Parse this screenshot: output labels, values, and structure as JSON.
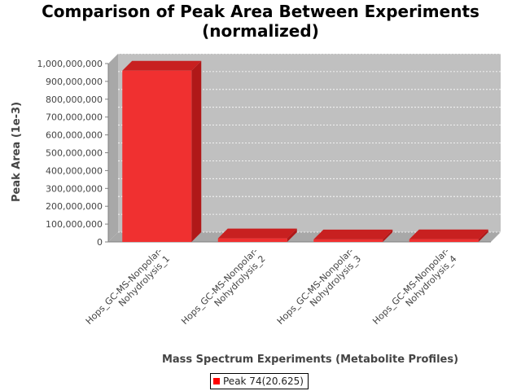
{
  "chart_data": {
    "type": "bar",
    "title_line1": "Comparison of Peak Area Between Experiments",
    "title_line2": "(normalized)",
    "xlabel": "Mass Spectrum Experiments (Metabolite Profiles)",
    "ylabel": "Peak Area (1e-3)",
    "categories": [
      [
        "Hops_GC-MS-Nonpolar-",
        "Nohydrolysis_1"
      ],
      [
        "Hops_GC-MS-Nonpolar-",
        "Nohydrolysis_2"
      ],
      [
        "Hops_GC-MS-Nonpolar-",
        "Nohydrolysis_3"
      ],
      [
        "Hops_GC-MS-Nonpolar-",
        "Nohydrolysis_4"
      ]
    ],
    "series": [
      {
        "name": "Peak 74(20.625)",
        "color": "#ff0000",
        "values": [
          960000000,
          20000000,
          14000000,
          15000000
        ]
      }
    ],
    "ylim": [
      0,
      1000000000
    ],
    "yticks": [
      0,
      100000000,
      200000000,
      300000000,
      400000000,
      500000000,
      600000000,
      700000000,
      800000000,
      900000000,
      1000000000
    ],
    "ytick_labels": [
      "0",
      "100,000,000",
      "200,000,000",
      "300,000,000",
      "400,000,000",
      "500,000,000",
      "600,000,000",
      "700,000,000",
      "800,000,000",
      "900,000,000",
      "1,000,000,000"
    ],
    "grid": true,
    "legend_position": "bottom-center",
    "plot_background": "#c0c0c0"
  }
}
